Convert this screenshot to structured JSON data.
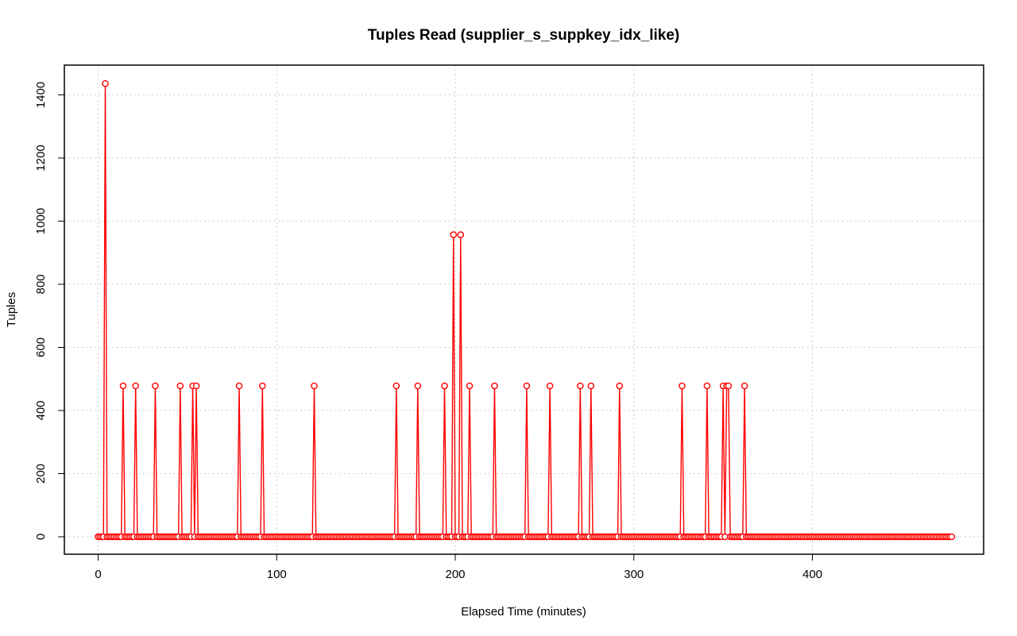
{
  "chart_data": {
    "type": "line",
    "title": "Tuples Read (supplier_s_suppkey_idx_like)",
    "xlabel": "Elapsed Time (minutes)",
    "ylabel": "Tuples",
    "xlim": [
      0,
      480
    ],
    "ylim": [
      0,
      1440
    ],
    "xticks": [
      0,
      100,
      200,
      300,
      400
    ],
    "yticks": [
      0,
      200,
      400,
      600,
      800,
      1000,
      1200,
      1400
    ],
    "grid": true,
    "x_max": 478,
    "x_step": 1,
    "baseline": 0,
    "series": [
      {
        "color": "#ff0000",
        "markers": "open-circle",
        "points": [
          [
            4,
            1436
          ],
          [
            14,
            478
          ],
          [
            21,
            478
          ],
          [
            32,
            478
          ],
          [
            46,
            478
          ],
          [
            53,
            478
          ],
          [
            55,
            478
          ],
          [
            79,
            478
          ],
          [
            92,
            478
          ],
          [
            121,
            478
          ],
          [
            167,
            478
          ],
          [
            179,
            478
          ],
          [
            194,
            478
          ],
          [
            199,
            957
          ],
          [
            203,
            957
          ],
          [
            208,
            478
          ],
          [
            222,
            478
          ],
          [
            240,
            478
          ],
          [
            253,
            478
          ],
          [
            270,
            478
          ],
          [
            276,
            478
          ],
          [
            292,
            478
          ],
          [
            327,
            478
          ],
          [
            341,
            478
          ],
          [
            350,
            478
          ],
          [
            352,
            478
          ],
          [
            353,
            478
          ],
          [
            362,
            478
          ]
        ]
      }
    ]
  }
}
